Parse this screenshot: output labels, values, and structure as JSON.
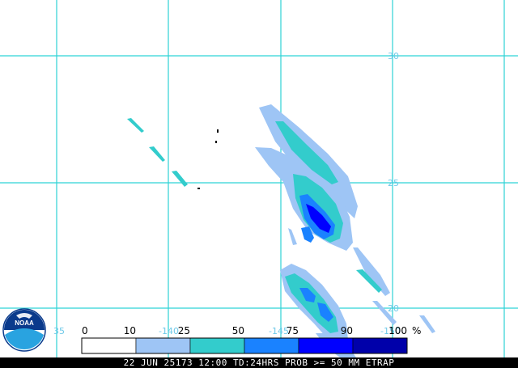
{
  "grid_labels": {
    "lat_30": "30",
    "lat_25": "25",
    "lat_20": "20",
    "lon_140": "-140",
    "lon_145": "-145",
    "lon_150": "-150",
    "lon_35": "35"
  },
  "legend": {
    "ticks": [
      "0",
      "10",
      "25",
      "50",
      "75",
      "90",
      "100"
    ],
    "unit": "%",
    "bins": [
      {
        "range": "0-10",
        "color": "#ffffff"
      },
      {
        "range": "10-25",
        "color": "#9ec5f5"
      },
      {
        "range": "25-50",
        "color": "#33cccc"
      },
      {
        "range": "50-75",
        "color": "#1a82ff"
      },
      {
        "range": "75-90",
        "color": "#0000ff"
      },
      {
        "range": "90-100",
        "color": "#0000aa"
      }
    ]
  },
  "status_bar": "22 JUN 25173 12:00 TD:24HRS PROB >= 50 MM ETRAP",
  "logo": {
    "text": "NOAA",
    "colors": {
      "dark": "#0a3a8c",
      "light": "#29a3e0"
    }
  },
  "colors": {
    "grid": "#2ed3d6",
    "land": "#000000"
  }
}
